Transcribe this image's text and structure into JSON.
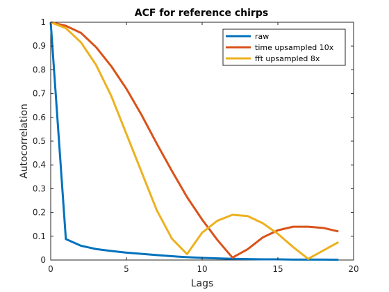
{
  "chart_data": {
    "type": "line",
    "title": "ACF for reference chirps",
    "xlabel": "Lags",
    "ylabel": "Autocorrelation",
    "xlim": [
      0,
      20
    ],
    "ylim": [
      0,
      1
    ],
    "xticks": [
      0,
      5,
      10,
      15,
      20
    ],
    "yticks": [
      0,
      0.1,
      0.2,
      0.3,
      0.4,
      0.5,
      0.6,
      0.7,
      0.8,
      0.9,
      1
    ],
    "xtick_labels": [
      "0",
      "5",
      "10",
      "15",
      "20"
    ],
    "ytick_labels": [
      "0",
      "0.1",
      "0.2",
      "0.3",
      "0.4",
      "0.5",
      "0.6",
      "0.7",
      "0.8",
      "0.9",
      "1"
    ],
    "grid": false,
    "legend_position": "top-right",
    "x": [
      0,
      1,
      2,
      3,
      4,
      5,
      6,
      7,
      8,
      9,
      10,
      11,
      12,
      13,
      14,
      15,
      16,
      17,
      18,
      19
    ],
    "series": [
      {
        "name": "raw",
        "color": "#0072BD",
        "values": [
          1.0,
          0.088,
          0.06,
          0.046,
          0.038,
          0.031,
          0.026,
          0.021,
          0.016,
          0.012,
          0.009,
          0.007,
          0.005,
          0.004,
          0.003,
          0.003,
          0.002,
          0.002,
          0.002,
          0.001
        ]
      },
      {
        "name": "time upsampled 10x",
        "color": "#D95319",
        "values": [
          1.0,
          0.985,
          0.955,
          0.895,
          0.815,
          0.72,
          0.61,
          0.49,
          0.375,
          0.265,
          0.17,
          0.085,
          0.01,
          0.045,
          0.095,
          0.125,
          0.14,
          0.14,
          0.135,
          0.12
        ]
      },
      {
        "name": "fft upsampled 8x",
        "color": "#EDB120",
        "values": [
          1.0,
          0.975,
          0.915,
          0.82,
          0.69,
          0.53,
          0.37,
          0.21,
          0.09,
          0.025,
          0.115,
          0.165,
          0.19,
          0.185,
          0.155,
          0.11,
          0.055,
          0.005,
          0.04,
          0.075
        ]
      }
    ]
  }
}
